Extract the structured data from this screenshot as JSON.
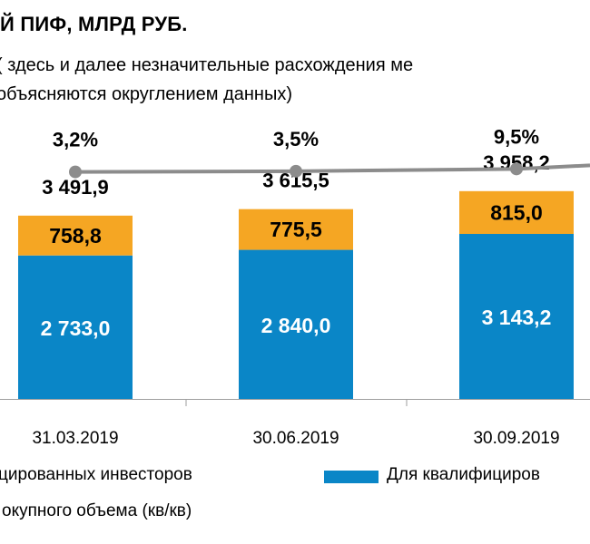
{
  "title": "Й ПИФ, МЛРД РУБ.",
  "subtitle_lines": [
    "( здесь и далее незначительные расхождения ме",
    "объясняются округлением данных)"
  ],
  "colors": {
    "blue": "#0a86c7",
    "orange": "#f5a623",
    "line": "#8c8c8c",
    "axis": "#9e9e9e"
  },
  "chart_data": {
    "type": "bar",
    "stacked": true,
    "categories": [
      "31.03.2019",
      "30.06.2019",
      "30.09.2019"
    ],
    "series": [
      {
        "name": "Для квалифициров",
        "values": [
          2733.0,
          2840.0,
          3143.2
        ]
      },
      {
        "name": "цированных инвесторов",
        "values": [
          758.8,
          775.5,
          815.0
        ]
      }
    ],
    "value_labels": {
      "bottom": [
        "2 733,0",
        "2 840,0",
        "3 143,2"
      ],
      "top": [
        "758,8",
        "775,5",
        "815,0"
      ]
    },
    "totals": [
      "3 491,9",
      "3 615,5",
      "3 958,2"
    ],
    "line": {
      "values": [
        3.2,
        3.5,
        9.5
      ],
      "labels": [
        "3,2%",
        "3,5%",
        "9,5%"
      ]
    }
  },
  "legend": {
    "item1": "цированных инвесторов",
    "item2": "Для квалифициров",
    "item3": "окупного объема (кв/кв)"
  }
}
